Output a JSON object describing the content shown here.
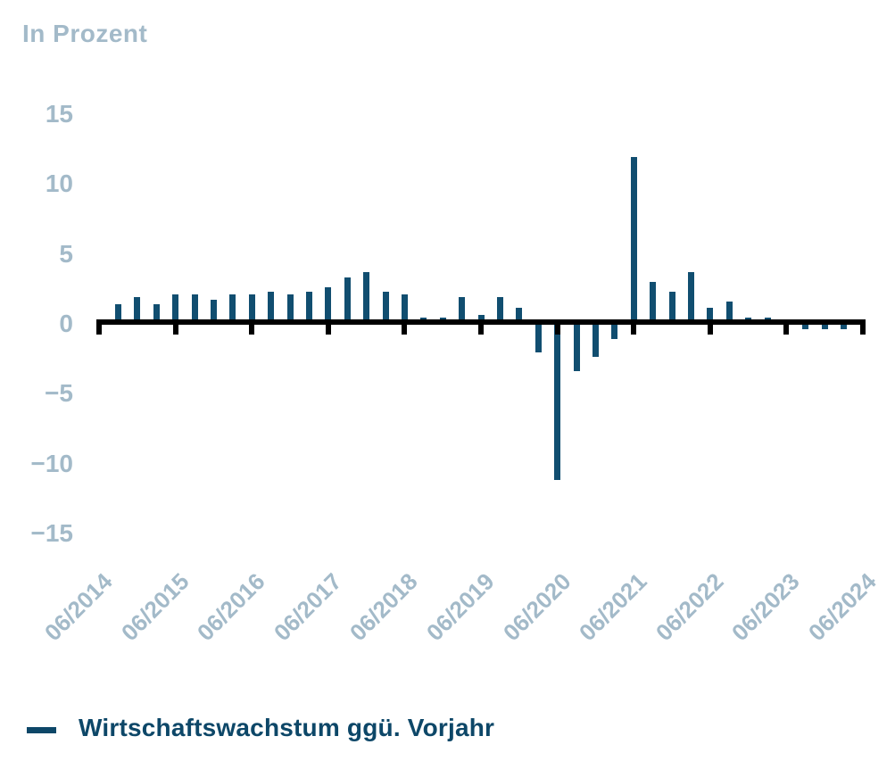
{
  "colors": {
    "bar": "#114e70",
    "axis_line": "#000000",
    "axis_label": "#a3bac9",
    "legend_text": "#0d4768"
  },
  "chart_data": {
    "type": "bar",
    "title": "In Prozent",
    "xlabel": "",
    "ylabel": "In Prozent",
    "ylim": [
      -15,
      15
    ],
    "grid": false,
    "ytick_values": [
      15,
      10,
      5,
      0,
      -5,
      -10,
      -15
    ],
    "ytick_labels": [
      "15",
      "10",
      "5",
      "0",
      "−5",
      "−10",
      "−15"
    ],
    "x_axis_tick_labels": [
      "06/2014",
      "06/2015",
      "06/2016",
      "06/2017",
      "06/2018",
      "06/2019",
      "06/2020",
      "06/2021",
      "06/2022",
      "06/2023",
      "06/2024"
    ],
    "x": [
      "09/2014",
      "12/2014",
      "03/2015",
      "06/2015",
      "09/2015",
      "12/2015",
      "03/2016",
      "06/2016",
      "09/2016",
      "12/2016",
      "03/2017",
      "06/2017",
      "09/2017",
      "12/2017",
      "03/2018",
      "06/2018",
      "09/2018",
      "12/2018",
      "03/2019",
      "06/2019",
      "09/2019",
      "12/2019",
      "03/2020",
      "06/2020",
      "09/2020",
      "12/2020",
      "03/2021",
      "06/2021",
      "09/2021",
      "12/2021",
      "03/2022",
      "06/2022",
      "09/2022",
      "12/2022",
      "03/2023",
      "06/2023",
      "09/2023",
      "12/2023",
      "03/2024"
    ],
    "series": [
      {
        "name": "Wirtschaftswachstum ggü. Vorjahr",
        "values": [
          1.3,
          1.8,
          1.3,
          2.0,
          2.0,
          1.6,
          2.0,
          2.0,
          2.2,
          2.0,
          2.2,
          2.5,
          3.2,
          3.6,
          2.2,
          2.0,
          0.3,
          0.3,
          1.8,
          0.5,
          1.8,
          1.0,
          -2.2,
          -11.3,
          -3.5,
          -2.5,
          -1.2,
          11.8,
          2.9,
          2.2,
          3.6,
          1.0,
          1.5,
          0.3,
          0.3,
          0.0,
          -0.5,
          -0.5,
          -0.5
        ]
      }
    ],
    "legend": {
      "position": "bottom-left",
      "entries": [
        "Wirtschaftswachstum ggü. Vorjahr"
      ]
    }
  }
}
